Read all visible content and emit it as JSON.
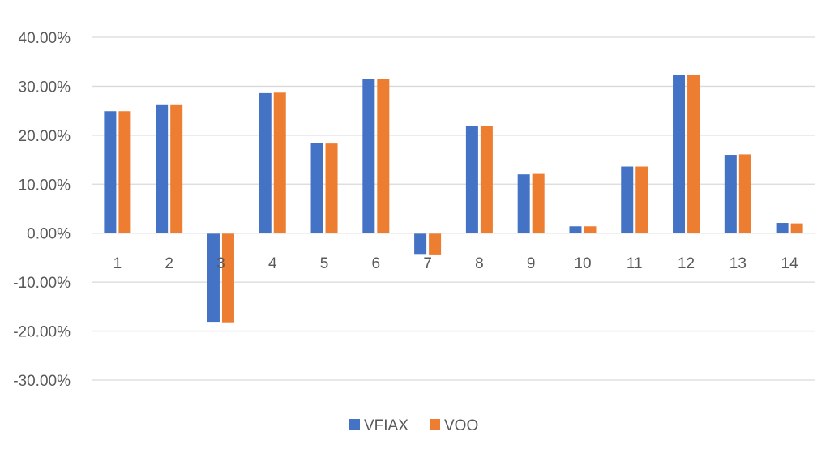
{
  "chart_data": {
    "type": "bar",
    "title": "",
    "xlabel": "",
    "ylabel": "",
    "categories": [
      "1",
      "2",
      "3",
      "4",
      "5",
      "6",
      "7",
      "8",
      "9",
      "10",
      "11",
      "12",
      "13",
      "14"
    ],
    "series": [
      {
        "name": "VFIAX",
        "color": "#4472C4",
        "values": [
          24.9,
          26.3,
          -18.1,
          28.6,
          18.4,
          31.5,
          -4.4,
          21.8,
          12.0,
          1.4,
          13.6,
          32.3,
          16.0,
          2.1
        ]
      },
      {
        "name": "VOO",
        "color": "#ED7D31",
        "values": [
          24.9,
          26.3,
          -18.2,
          28.7,
          18.3,
          31.4,
          -4.5,
          21.8,
          12.1,
          1.4,
          13.6,
          32.3,
          16.1,
          2.0
        ]
      }
    ],
    "ylim": [
      -30,
      40
    ],
    "yticks": [
      "40.00%",
      "30.00%",
      "20.00%",
      "10.00%",
      "0.00%",
      "-10.00%",
      "-20.00%",
      "-30.00%"
    ],
    "ytick_values": [
      40,
      30,
      20,
      10,
      0,
      -10,
      -20,
      -30
    ],
    "grid": true,
    "legend_position": "bottom"
  }
}
